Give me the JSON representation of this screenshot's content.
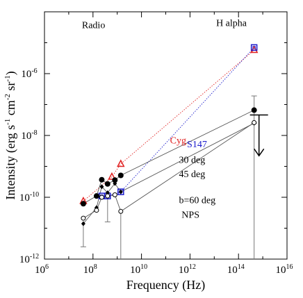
{
  "chart_data": {
    "type": "scatter",
    "title": "",
    "xlabel": "Frequency (Hz)",
    "ylabel_parts": {
      "main": "Intensity (erg s",
      "e1": "-1",
      "p2": " cm",
      "e2": "-2",
      "p3": " sr",
      "e3": "-1",
      "close": ")"
    },
    "xscale": "log",
    "yscale": "log",
    "xlim": [
      1000000.0,
      1e+16
    ],
    "ylim": [
      1e-12,
      0.0001
    ],
    "xticks": [
      {
        "v": 1000000.0,
        "base": "10",
        "exp": "6"
      },
      {
        "v": 100000000.0,
        "base": "10",
        "exp": "8"
      },
      {
        "v": 10000000000.0,
        "base": "10",
        "exp": "10"
      },
      {
        "v": 1000000000000.0,
        "base": "10",
        "exp": "12"
      },
      {
        "v": 100000000000000.0,
        "base": "10",
        "exp": "14"
      },
      {
        "v": 1e+16,
        "base": "10",
        "exp": "16"
      }
    ],
    "yticks": [
      {
        "v": 1e-12,
        "base": "10",
        "exp": "-12"
      },
      {
        "v": 1e-10,
        "base": "10",
        "exp": "-10"
      },
      {
        "v": 1e-08,
        "base": "10",
        "exp": "-8"
      },
      {
        "v": 1e-06,
        "base": "10",
        "exp": "-6"
      }
    ],
    "grid": false,
    "series": [
      {
        "id": "cyg",
        "color": "#e02020",
        "marker": "triangle-open",
        "line": "dotted",
        "x": [
          40000000.0,
          600000000.0,
          1400000000.0,
          440000000000000.0
        ],
        "y": [
          7.5e-11,
          4.6e-10,
          1.2e-09,
          5.8e-06
        ]
      },
      {
        "id": "s147",
        "color": "#1a1acc",
        "marker": "square-open",
        "line": "dotted",
        "x": [
          230000000.0,
          400000000.0,
          1400000000.0,
          440000000000000.0
        ],
        "y": [
          1.1e-10,
          1.1e-10,
          1.5e-10,
          7e-06
        ]
      },
      {
        "id": "30deg",
        "color": "#000000",
        "marker": "circle-filled",
        "line": "solid",
        "x": [
          40000000.0,
          140000000.0,
          230000000.0,
          400000000.0,
          800000000.0,
          1400000000.0,
          440000000000000.0
        ],
        "y": [
          6.2e-11,
          1.1e-10,
          3.7e-10,
          2.7e-10,
          3.6e-10,
          5.1e-10,
          6.6e-08
        ],
        "err": [
          null,
          null,
          null,
          null,
          null,
          null,
          [
            2.5e-08,
            1.9e-07
          ]
        ]
      },
      {
        "id": "45deg",
        "color": "#000000",
        "marker": "diamond-filled",
        "line": "solid",
        "x": [
          40000000.0,
          140000000.0,
          230000000.0,
          400000000.0,
          800000000.0,
          1400000000.0,
          440000000000000.0
        ],
        "y": [
          1.4e-11,
          4.6e-11,
          2.2e-10,
          1.4e-10,
          2.8e-10,
          1.5e-10,
          2.5e-08
        ],
        "err": [
          [
            2.5e-12,
            null
          ],
          null,
          null,
          [
            1.6e-11,
            null
          ],
          null,
          null,
          null
        ]
      },
      {
        "id": "60deg",
        "color": "#000000",
        "marker": "circle-open",
        "line": "solid",
        "x": [
          40000000.0,
          140000000.0,
          230000000.0,
          400000000.0,
          800000000.0,
          1400000000.0,
          440000000000000.0
        ],
        "y": [
          2.1e-11,
          3.8e-11,
          1e-10,
          1.1e-10,
          1.2e-10,
          3.5e-11,
          2.6e-08
        ],
        "err": [
          null,
          null,
          null,
          null,
          null,
          [
            1e-12,
            null
          ],
          [
            1e-12,
            null
          ]
        ]
      }
    ],
    "upper_limit": {
      "x": 700000000000000.0,
      "y": 4.6e-08,
      "y_arrow_tip": 2.2e-09
    },
    "annotations": [
      {
        "id": "radio",
        "text": "Radio",
        "x": 35000000.0,
        "y": 3e-05,
        "color": "#000000"
      },
      {
        "id": "halpha",
        "text": "H alpha",
        "x": 12000000000000.0,
        "y": 3.5e-05,
        "color": "#000000"
      },
      {
        "id": "cyg",
        "text": "Cyg",
        "x": 150000000000.0,
        "y": 5.5e-09,
        "color": "#e02020"
      },
      {
        "id": "s147",
        "text": "S147",
        "x": 750000000000.0,
        "y": 4.2e-09,
        "color": "#1a1acc"
      },
      {
        "id": "30deg",
        "text": "30 deg",
        "x": 350000000000.0,
        "y": 1.3e-09,
        "color": "#000000"
      },
      {
        "id": "45deg",
        "text": "45 deg",
        "x": 350000000000.0,
        "y": 4.5e-10,
        "color": "#000000"
      },
      {
        "id": "60deg",
        "text": "b=60 deg",
        "x": 350000000000.0,
        "y": 6.5e-11,
        "color": "#000000"
      },
      {
        "id": "nps",
        "text": "NPS",
        "x": 450000000000.0,
        "y": 2.2e-11,
        "color": "#000000"
      }
    ]
  }
}
